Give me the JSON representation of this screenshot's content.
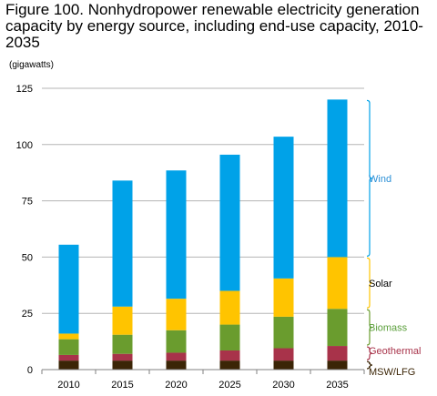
{
  "chart_data": {
    "type": "bar",
    "stacked": true,
    "title": "Figure 100. Nonhydropower renewable electricity generation capacity by energy source, including end-use capacity, 2010-2035",
    "units": "(gigawatts)",
    "categories": [
      "2010",
      "2015",
      "2020",
      "2025",
      "2030",
      "2035"
    ],
    "ylim": [
      0,
      125
    ],
    "yticks": [
      0,
      25,
      50,
      75,
      100,
      125
    ],
    "grid": true,
    "legend_position": "right",
    "series": [
      {
        "name": "MSW/LFG",
        "color": "#3b2506",
        "label_color": "#3b2506",
        "values": [
          4,
          4,
          4,
          4,
          4,
          4
        ]
      },
      {
        "name": "Geothermal",
        "color": "#a8334a",
        "label_color": "#a8334a",
        "values": [
          2.5,
          3,
          3.5,
          4.5,
          5.5,
          6.5
        ]
      },
      {
        "name": "Biomass",
        "color": "#6a9c2e",
        "label_color": "#5a9e3a",
        "values": [
          7,
          8.5,
          10,
          11.5,
          14,
          16.5
        ]
      },
      {
        "name": "Solar",
        "color": "#ffc400",
        "label_color": "#000000",
        "values": [
          2.5,
          12.5,
          14,
          15,
          17,
          23
        ]
      },
      {
        "name": "Wind",
        "color": "#00a2e8",
        "label_color": "#2a8fd6",
        "values": [
          39.5,
          56,
          57,
          60.5,
          63,
          70
        ]
      }
    ]
  }
}
